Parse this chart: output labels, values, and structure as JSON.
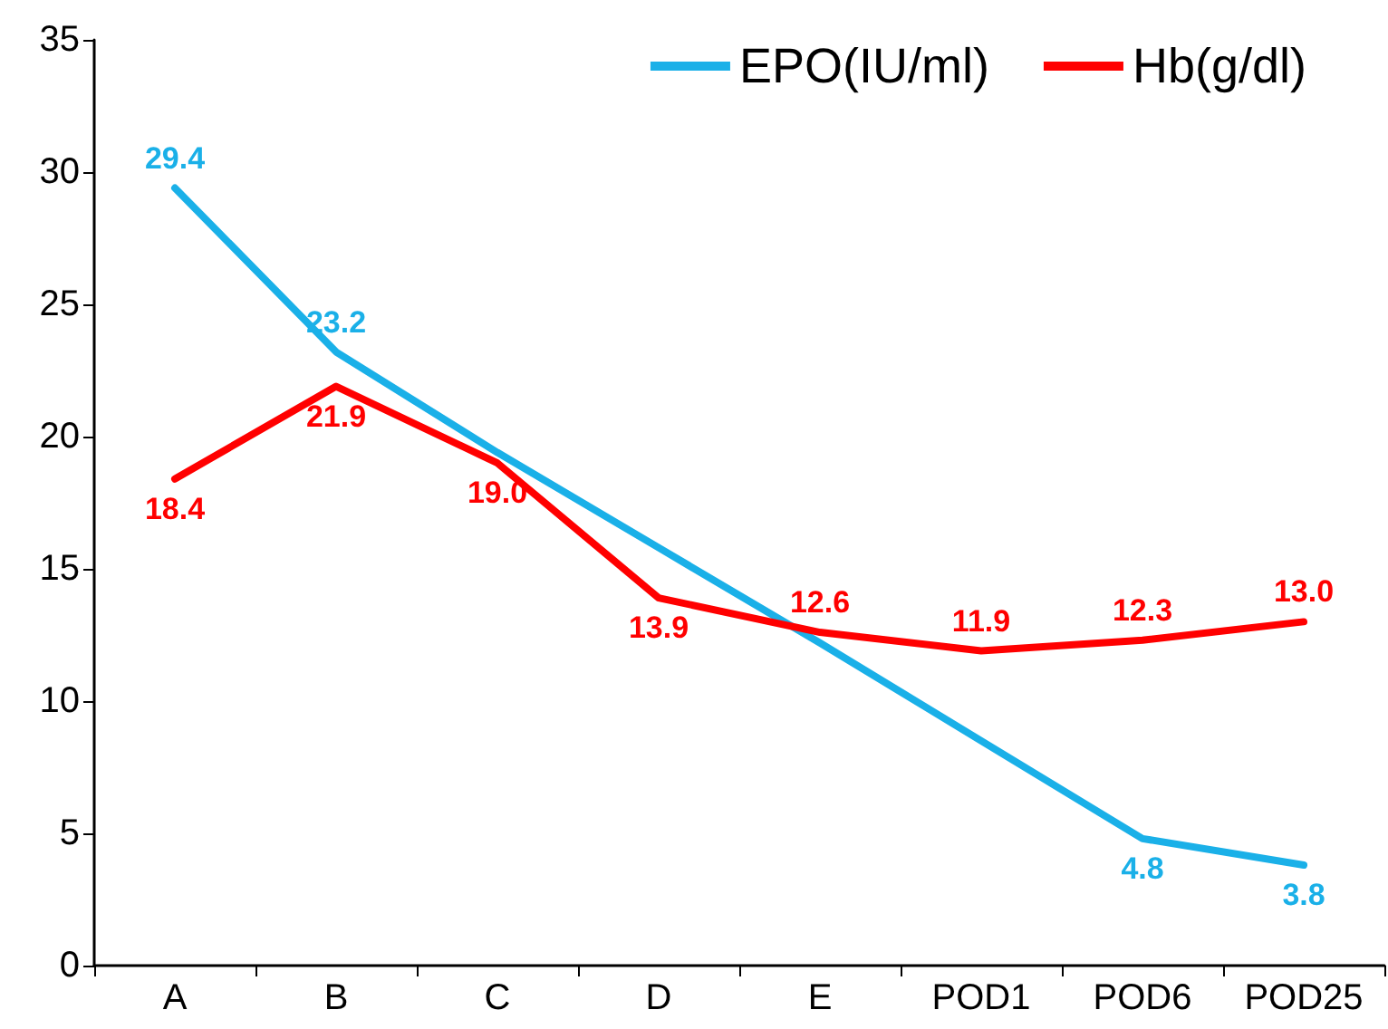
{
  "chart_data": {
    "type": "line",
    "categories": [
      "A",
      "B",
      "C",
      "D",
      "E",
      "POD1",
      "POD6",
      "POD25"
    ],
    "series": [
      {
        "name": "EPO(IU/ml)",
        "color": "#1ab0e8",
        "values": [
          29.4,
          23.2,
          19.4,
          15.8,
          12.2,
          8.5,
          4.8,
          3.8
        ],
        "value_labels": [
          "29.4",
          "23.2",
          null,
          null,
          null,
          null,
          "4.8",
          "3.8"
        ]
      },
      {
        "name": "Hb(g/dl)",
        "color": "#ff0000",
        "values": [
          18.4,
          21.9,
          19.0,
          13.9,
          12.6,
          11.9,
          12.3,
          13.0
        ],
        "value_labels": [
          "18.4",
          "21.9",
          "19.0",
          "13.9",
          "12.6",
          "11.9",
          "12.3",
          "13.0"
        ]
      }
    ],
    "ylim": [
      0,
      35
    ],
    "yticks": [
      0,
      5,
      10,
      15,
      20,
      25,
      30,
      35
    ],
    "grid": false,
    "legend": "top right",
    "marker": "none",
    "line_style": "solid"
  }
}
